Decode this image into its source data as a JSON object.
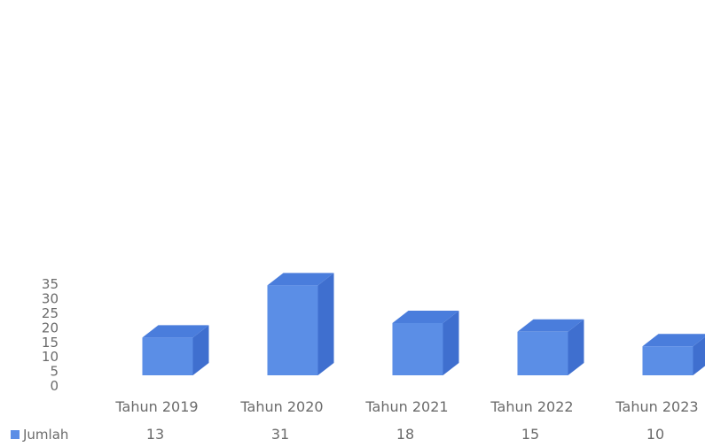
{
  "chart_data": {
    "type": "bar",
    "style": "3d-column",
    "categories": [
      "Tahun 2019",
      "Tahun 2020",
      "Tahun 2021",
      "Tahun 2022",
      "Tahun 2023"
    ],
    "series": [
      {
        "name": "Jumlah",
        "values": [
          13,
          31,
          18,
          15,
          10
        ]
      }
    ],
    "ylim": [
      0,
      35
    ],
    "yticks": [
      "0",
      "5",
      "10",
      "15",
      "20",
      "25",
      "30",
      "35"
    ],
    "grid": false,
    "legend_position": "bottom-left",
    "data_table": true,
    "colors": {
      "bar_front": "#5b8ee6",
      "bar_side": "#3f6fcf",
      "bar_top": "#4a7ddc",
      "text": "#6b6b6b",
      "legend_swatch": "#5b8ee6"
    }
  }
}
